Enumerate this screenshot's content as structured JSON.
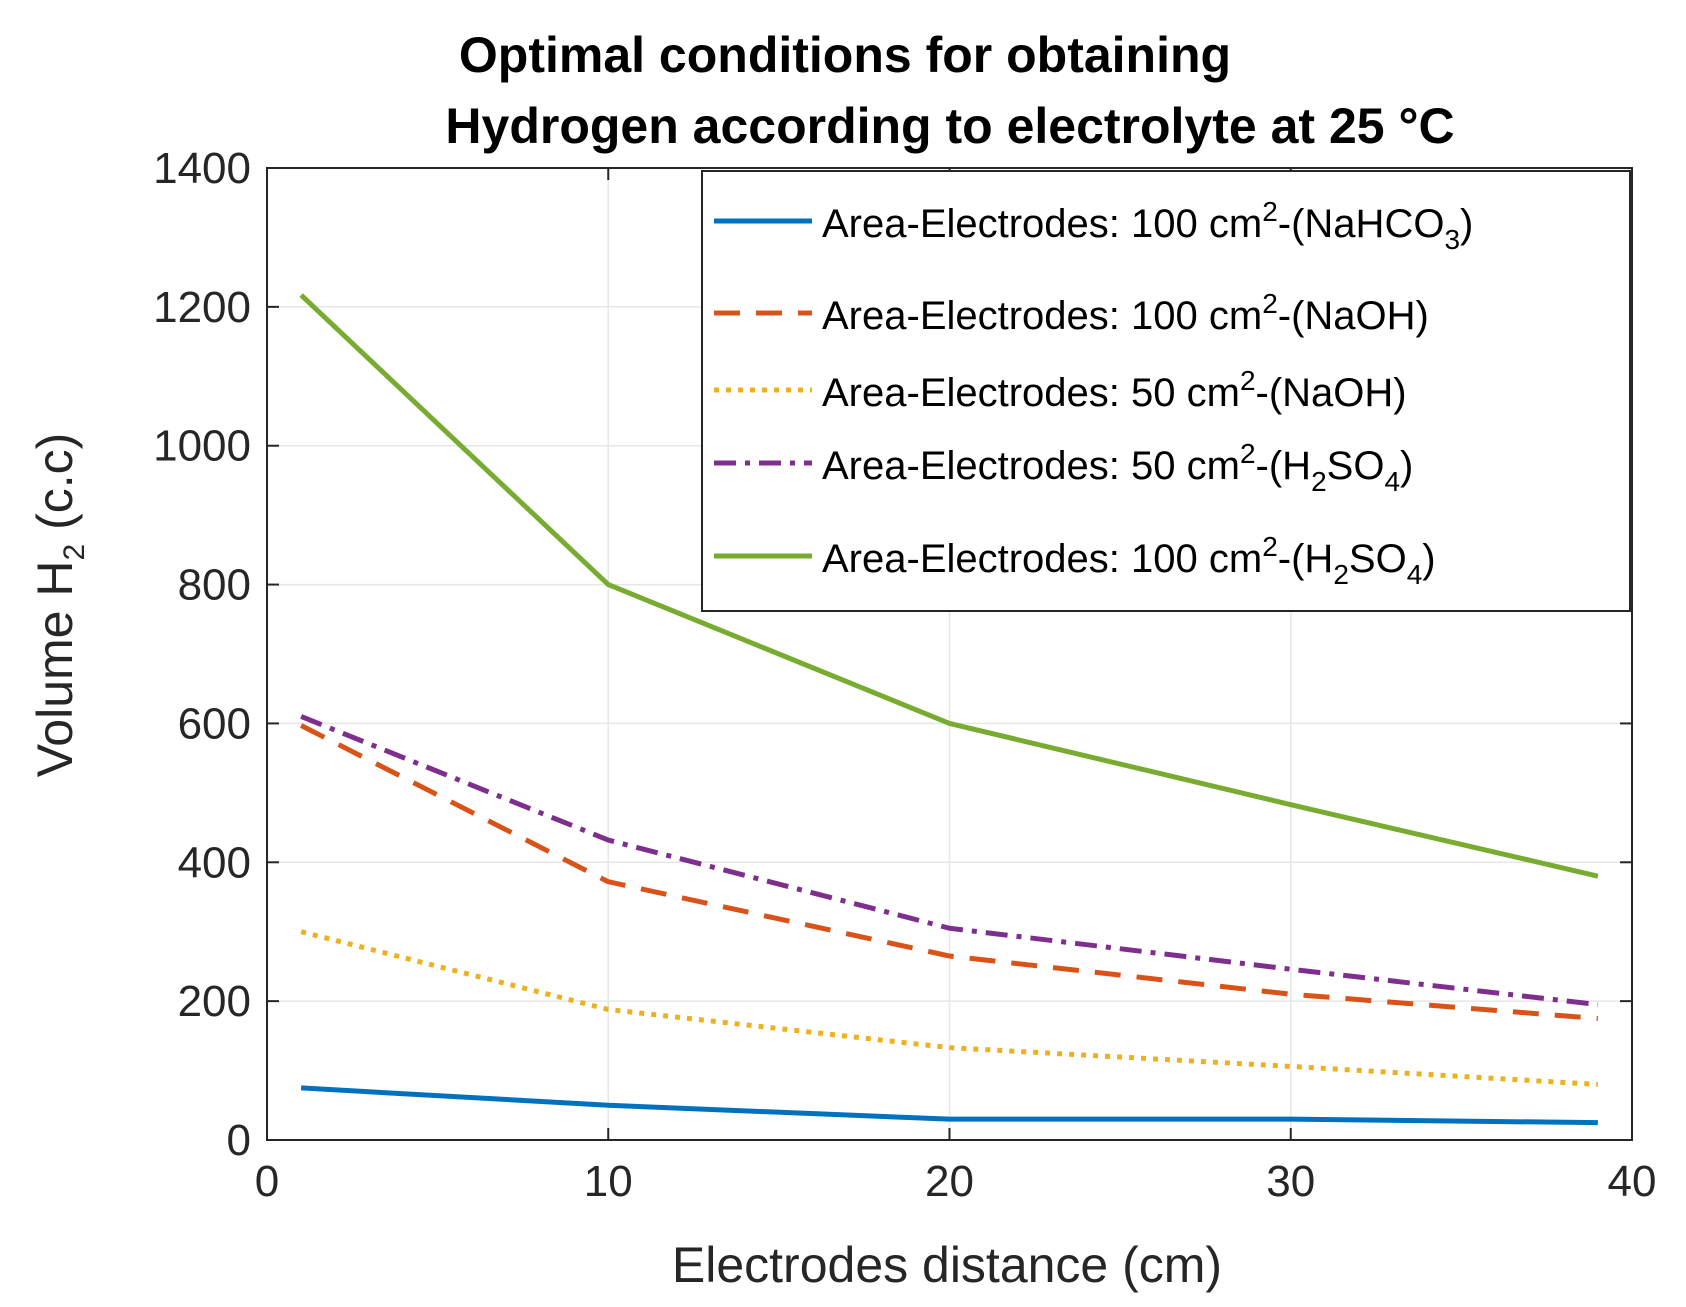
{
  "chart_data": {
    "type": "line",
    "title_line1": "Optimal conditions for obtaining",
    "title_line2": "Hydrogen according to electrolyte at 25 °C",
    "xlabel": "Electrodes distance (cm)",
    "ylabel": {
      "prefix": "Volume H",
      "sub": "2",
      "suffix": " (c.c)"
    },
    "xlim": [
      0,
      40
    ],
    "ylim": [
      0,
      1400
    ],
    "xticks": [
      0,
      10,
      20,
      30,
      40
    ],
    "yticks": [
      0,
      200,
      400,
      600,
      800,
      1000,
      1200,
      1400
    ],
    "grid": true,
    "legend_position": "top-right",
    "x": [
      1,
      10,
      20,
      30,
      39
    ],
    "series": [
      {
        "name": "Area-Electrodes: 100 cm2-(NaHCO3)",
        "label_parts": [
          [
            "Area-Electrodes: 100 cm",
            ""
          ],
          [
            "2",
            "sup"
          ],
          [
            "-(NaHCO",
            ""
          ],
          [
            "3",
            "sub"
          ],
          [
            ")",
            ""
          ]
        ],
        "values": [
          75,
          50,
          30,
          30,
          25
        ],
        "color": "#0072BD",
        "style": "solid"
      },
      {
        "name": "Area-Electrodes: 100 cm2-(NaOH)",
        "label_parts": [
          [
            "Area-Electrodes: 100 cm",
            ""
          ],
          [
            "2",
            "sup"
          ],
          [
            "-(NaOH)",
            ""
          ]
        ],
        "values": [
          597,
          372,
          265,
          210,
          175
        ],
        "color": "#D95319",
        "style": "dashed"
      },
      {
        "name": "Area-Electrodes: 50 cm2-(NaOH)",
        "label_parts": [
          [
            "Area-Electrodes: 50 cm",
            ""
          ],
          [
            "2",
            "sup"
          ],
          [
            "-(NaOH)",
            ""
          ]
        ],
        "values": [
          300,
          188,
          133,
          106,
          80
        ],
        "color": "#EDB120",
        "style": "dotted"
      },
      {
        "name": "Area-Electrodes: 50 cm2-(H2SO4)",
        "label_parts": [
          [
            "Area-Electrodes: 50 cm",
            ""
          ],
          [
            "2",
            "sup"
          ],
          [
            "-(H",
            ""
          ],
          [
            "2",
            "sub"
          ],
          [
            "SO",
            ""
          ],
          [
            "4",
            "sub"
          ],
          [
            ")",
            ""
          ]
        ],
        "values": [
          610,
          432,
          305,
          246,
          195
        ],
        "color": "#7E2F8E",
        "style": "dashdot"
      },
      {
        "name": "Area-Electrodes: 100 cm2-(H2SO4)",
        "label_parts": [
          [
            "Area-Electrodes: 100 cm",
            ""
          ],
          [
            "2",
            "sup"
          ],
          [
            "-(H",
            ""
          ],
          [
            "2",
            "sub"
          ],
          [
            "SO",
            ""
          ],
          [
            "4",
            "sub"
          ],
          [
            ")",
            ""
          ]
        ],
        "values": [
          1217,
          800,
          600,
          483,
          380
        ],
        "color": "#77AC30",
        "style": "solid"
      }
    ]
  }
}
